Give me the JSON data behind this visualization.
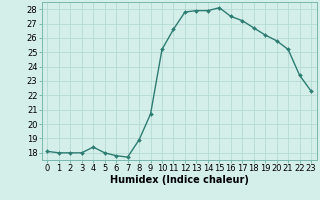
{
  "x": [
    0,
    1,
    2,
    3,
    4,
    5,
    6,
    7,
    8,
    9,
    10,
    11,
    12,
    13,
    14,
    15,
    16,
    17,
    18,
    19,
    20,
    21,
    22,
    23
  ],
  "y": [
    18.1,
    18.0,
    18.0,
    18.0,
    18.4,
    18.0,
    17.8,
    17.7,
    18.9,
    20.7,
    25.2,
    26.6,
    27.8,
    27.9,
    27.9,
    28.1,
    27.5,
    27.2,
    26.7,
    26.2,
    25.8,
    25.2,
    23.4,
    22.3
  ],
  "line_color": "#2e7d72",
  "marker": "D",
  "marker_size": 2.0,
  "background_color": "#d4eeea",
  "grid_color": "#afd8d0",
  "xlabel": "Humidex (Indice chaleur)",
  "xlim": [
    -0.5,
    23.5
  ],
  "ylim": [
    17.5,
    28.5
  ],
  "yticks": [
    18,
    19,
    20,
    21,
    22,
    23,
    24,
    25,
    26,
    27,
    28
  ],
  "xticks": [
    0,
    1,
    2,
    3,
    4,
    5,
    6,
    7,
    8,
    9,
    10,
    11,
    12,
    13,
    14,
    15,
    16,
    17,
    18,
    19,
    20,
    21,
    22,
    23
  ],
  "xlabel_fontsize": 7,
  "tick_fontsize": 6,
  "line_width": 1.0,
  "spine_color": "#7ab8b0"
}
